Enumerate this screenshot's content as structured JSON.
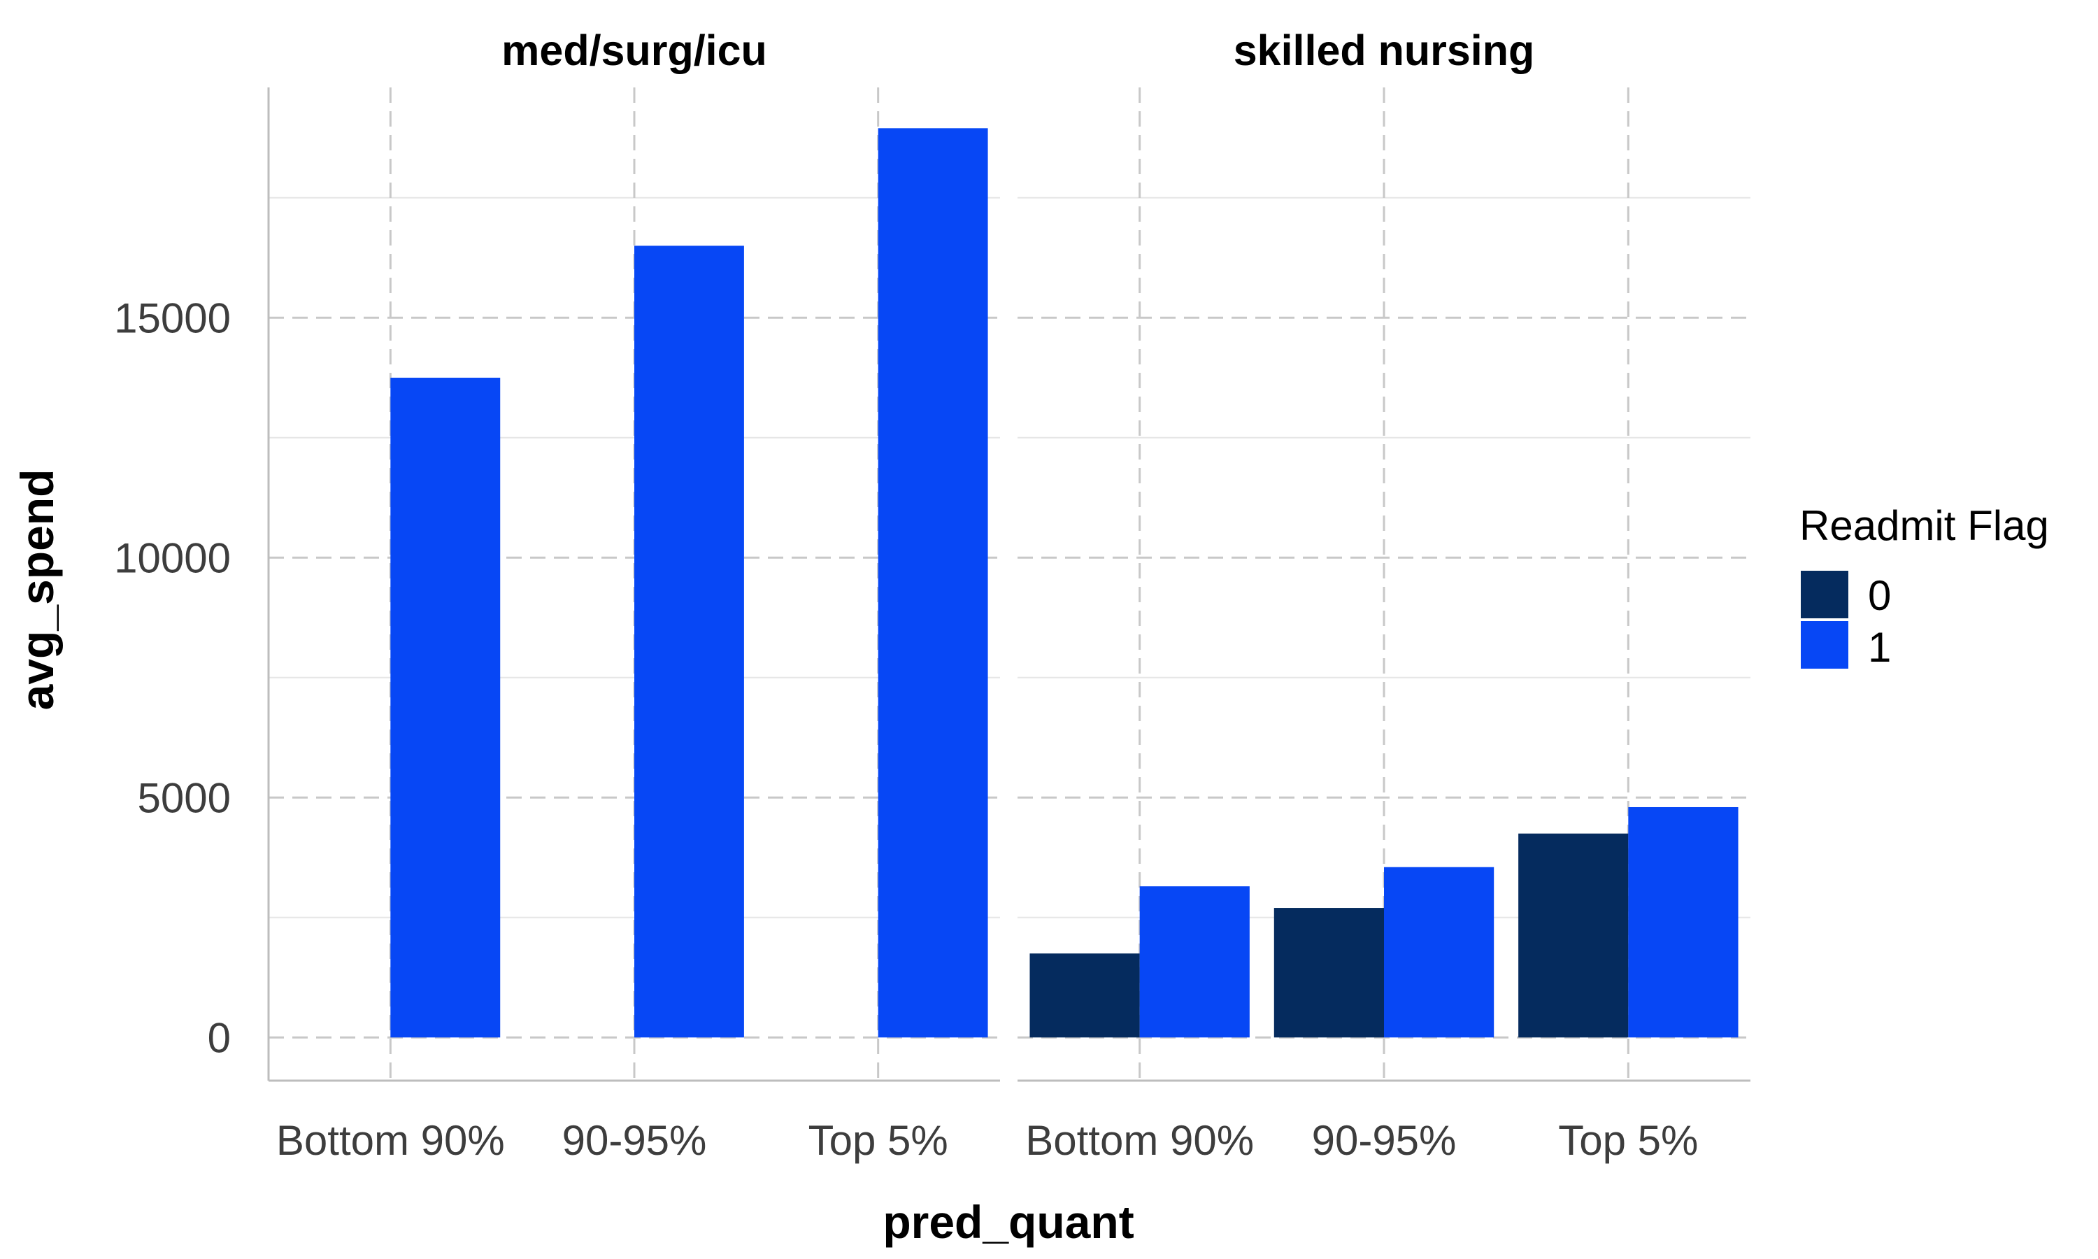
{
  "chart_data": {
    "type": "bar",
    "xlabel": "pred_quant",
    "ylabel": "avg_spend",
    "ylim": [
      -900,
      19800
    ],
    "yticks": [
      0,
      5000,
      10000,
      15000
    ],
    "categories": [
      "Bottom 90%",
      "90-95%",
      "Top 5%"
    ],
    "legend": {
      "title": "Readmit Flag",
      "position": "right",
      "items": [
        {
          "label": "0",
          "color": "#052b5e"
        },
        {
          "label": "1",
          "color": "#0747f5"
        }
      ]
    },
    "panels": [
      {
        "title": "med/surg/icu",
        "series": [
          {
            "name": "1",
            "values": [
              13750,
              16500,
              18950
            ]
          }
        ]
      },
      {
        "title": "skilled nursing",
        "series": [
          {
            "name": "0",
            "values": [
              1750,
              2700,
              4250
            ]
          },
          {
            "name": "1",
            "values": [
              3150,
              3550,
              4800
            ]
          }
        ]
      }
    ]
  }
}
